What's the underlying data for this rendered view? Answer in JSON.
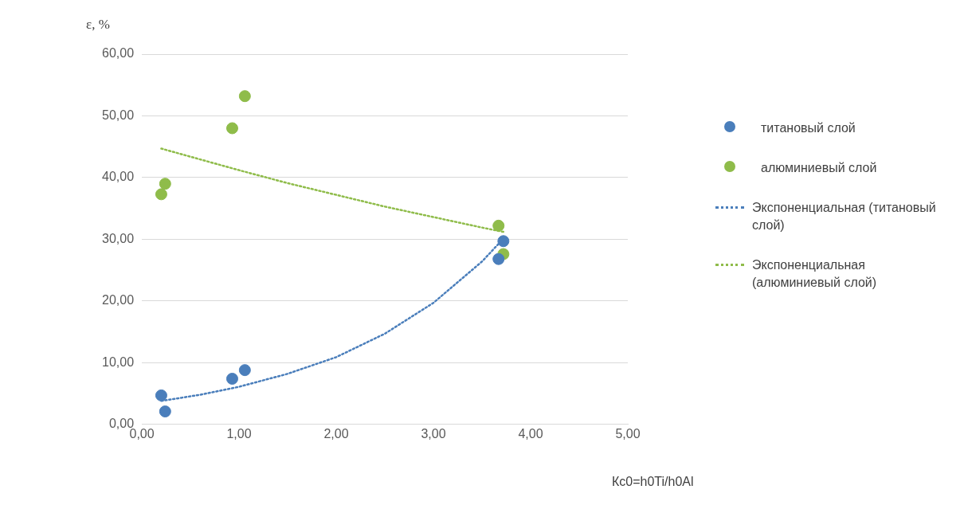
{
  "chart_data": {
    "type": "scatter",
    "xlabel": "Кс0=h0Ti/h0Al",
    "ylabel": "ε, %",
    "xlim": [
      0,
      5
    ],
    "ylim": [
      0,
      60
    ],
    "xticks": [
      {
        "value": 0,
        "label": "0,00"
      },
      {
        "value": 1,
        "label": "1,00"
      },
      {
        "value": 2,
        "label": "2,00"
      },
      {
        "value": 3,
        "label": "3,00"
      },
      {
        "value": 4,
        "label": "4,00"
      },
      {
        "value": 5,
        "label": "5,00"
      }
    ],
    "yticks": [
      {
        "value": 0,
        "label": "0,00"
      },
      {
        "value": 10,
        "label": "10,00"
      },
      {
        "value": 20,
        "label": "20,00"
      },
      {
        "value": 30,
        "label": "30,00"
      },
      {
        "value": 40,
        "label": "40,00"
      },
      {
        "value": 50,
        "label": "50,00"
      },
      {
        "value": 60,
        "label": "60,00"
      }
    ],
    "grid": "y",
    "legend": "right",
    "marker": "circle",
    "series": [
      {
        "name": "титановый слой",
        "color": "#4a7ebb",
        "x": [
          0.2,
          0.24,
          0.93,
          1.06,
          3.67,
          3.72
        ],
        "values": [
          4.7,
          2.1,
          7.4,
          8.8,
          26.8,
          29.7
        ]
      },
      {
        "name": "алюминиевый слой",
        "color": "#8fbc4a",
        "x": [
          0.2,
          0.24,
          0.93,
          1.06,
          3.67,
          3.72
        ],
        "values": [
          37.3,
          39.0,
          48.0,
          53.2,
          32.2,
          27.6
        ]
      },
      {
        "name": "Экспоненциальная (титановый слой)",
        "type": "line",
        "line_style": "dotted",
        "marker": "none",
        "color": "#4a7ebb",
        "x": [
          0.2,
          0.6,
          1,
          1.5,
          2,
          2.5,
          3,
          3.5,
          3.72
        ],
        "values": [
          3.8,
          4.8,
          6.1,
          8.2,
          10.9,
          14.7,
          19.7,
          26.4,
          30.1
        ]
      },
      {
        "name": "Экспоненциальная (алюминиевый слой)",
        "type": "line",
        "line_style": "dotted",
        "marker": "none",
        "color": "#8fbc4a",
        "x": [
          0.2,
          1,
          1.5,
          2,
          2.5,
          3,
          3.5,
          3.72
        ],
        "values": [
          44.7,
          41.2,
          39.1,
          37.2,
          35.3,
          33.6,
          31.9,
          31.2
        ]
      }
    ]
  }
}
